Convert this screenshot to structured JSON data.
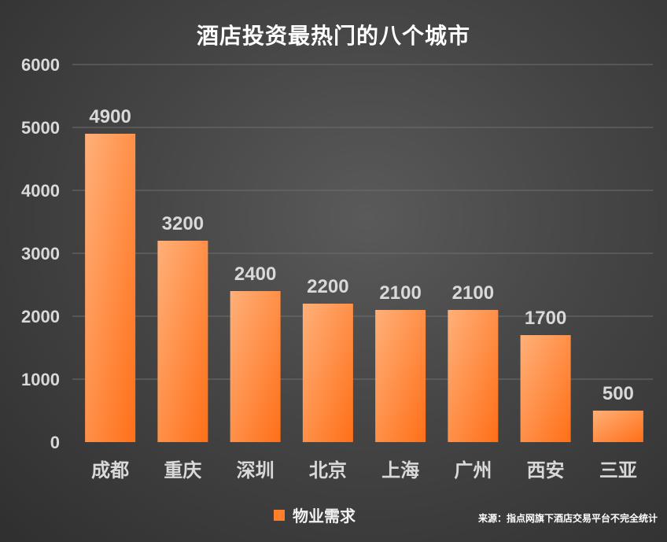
{
  "chart_data": {
    "type": "bar",
    "title": "酒店投资最热门的八个城市",
    "categories": [
      "成都",
      "重庆",
      "深圳",
      "北京",
      "上海",
      "广州",
      "西安",
      "三亚"
    ],
    "series": [
      {
        "name": "物业需求",
        "values": [
          4900,
          3200,
          2400,
          2200,
          2100,
          2100,
          1700,
          500
        ]
      }
    ],
    "ylim": [
      0,
      6000
    ],
    "yticks": [
      0,
      1000,
      2000,
      3000,
      4000,
      5000,
      6000
    ],
    "grid": true,
    "legend_position": "bottom-center",
    "data_labels": true,
    "xlabel": "",
    "ylabel": ""
  },
  "source": "来源：指点网旗下酒店交易平台不完全统计",
  "colors": {
    "bar_light": "#ffb079",
    "bar_dark": "#ff6f17",
    "gridline": "#6e6e6e",
    "text": "#d9d9d9"
  }
}
